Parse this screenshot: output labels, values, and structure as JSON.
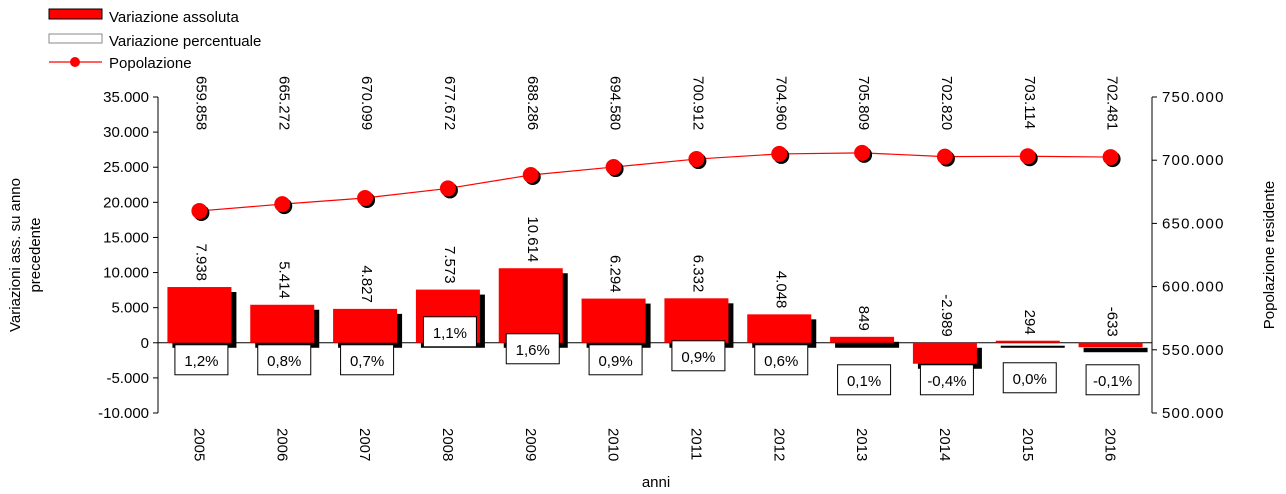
{
  "chart_data": {
    "type": "bar",
    "categories": [
      "2005",
      "2006",
      "2007",
      "2008",
      "2009",
      "2010",
      "2011",
      "2012",
      "2013",
      "2014",
      "2015",
      "2016"
    ],
    "series": [
      {
        "name": "Variazione assoluta",
        "kind": "bar",
        "axis": "left",
        "values": [
          7938,
          5414,
          4827,
          7573,
          10614,
          6294,
          6332,
          4048,
          849,
          -2989,
          294,
          -633
        ],
        "labels": [
          "7.938",
          "5.414",
          "4.827",
          "7.573",
          "10.614",
          "6.294",
          "6.332",
          "4.048",
          "849",
          "-2.989",
          "294",
          "-633"
        ]
      },
      {
        "name": "Variazione percentuale",
        "kind": "label-box",
        "labels": [
          "1,2%",
          "0,8%",
          "0,7%",
          "1,1%",
          "1,6%",
          "0,9%",
          "0,9%",
          "0,6%",
          "0,1%",
          "-0,4%",
          "0,0%",
          "-0,1%"
        ]
      },
      {
        "name": "Popolazione",
        "kind": "line",
        "axis": "right",
        "values": [
          659858,
          665272,
          670099,
          677672,
          688286,
          694580,
          700912,
          704960,
          705809,
          702820,
          703114,
          702481
        ],
        "labels": [
          "659.858",
          "665.272",
          "670.099",
          "677.672",
          "688.286",
          "694.580",
          "700.912",
          "704.960",
          "705.809",
          "702.820",
          "703.114",
          "702.481"
        ]
      }
    ],
    "xlabel": "anni",
    "ylabel": "Variazioni ass. su anno precedente",
    "ylabel_lines": [
      "Variazioni ass. su anno",
      "precedente"
    ],
    "y2label": "Popolazione residente",
    "ylim": [
      -10000,
      35000
    ],
    "y2lim": [
      500000,
      750000
    ],
    "yticks": [
      "35.000",
      "30.000",
      "25.000",
      "20.000",
      "15.000",
      "10.000",
      "5.000",
      "0",
      "-5.000",
      "-10.000"
    ],
    "y2ticks": [
      "750.000",
      "700.000",
      "650.000",
      "600.000",
      "550.000",
      "500.000"
    ],
    "legend": "top-left",
    "grid": false,
    "colors": {
      "bar": "#ff0000",
      "bar_shadow": "#000000",
      "line": "#ff0000",
      "marker": "#ff0000"
    }
  }
}
